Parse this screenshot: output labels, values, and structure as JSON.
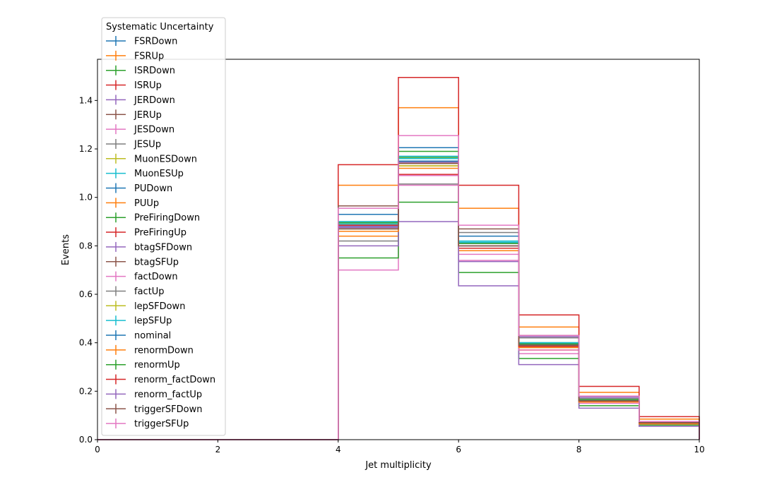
{
  "chart_data": {
    "type": "line",
    "title": "",
    "xlabel": "Jet multiplicity",
    "ylabel": "Events",
    "xlim": [
      0,
      10
    ],
    "ylim": [
      0,
      1.57
    ],
    "grid": false,
    "xticks": [
      "0",
      "2",
      "4",
      "6",
      "8",
      "10"
    ],
    "yticks": [
      "0.0",
      "0.2",
      "0.4",
      "0.6",
      "0.8",
      "1.0",
      "1.2",
      "1.4"
    ],
    "bin_edges": [
      0,
      1,
      2,
      3,
      4,
      5,
      6,
      7,
      8,
      9,
      10
    ],
    "legend": {
      "title": "Systematic Uncertainty",
      "placement": "upper-left"
    },
    "series": [
      {
        "name": "FSRDown",
        "color": "#1f77b4",
        "values": [
          0,
          0,
          0,
          0,
          0.93,
          1.205,
          0.84,
          0.42,
          0.16,
          0.07
        ]
      },
      {
        "name": "FSRUp",
        "color": "#ff7f0e",
        "values": [
          0,
          0,
          0,
          0,
          0.84,
          1.13,
          0.78,
          0.37,
          0.16,
          0.07
        ]
      },
      {
        "name": "ISRDown",
        "color": "#2ca02c",
        "values": [
          0,
          0,
          0,
          0,
          0.9,
          1.19,
          0.81,
          0.4,
          0.16,
          0.07
        ]
      },
      {
        "name": "ISRUp",
        "color": "#d62728",
        "values": [
          0,
          0,
          0,
          0,
          0.88,
          1.15,
          0.8,
          0.39,
          0.16,
          0.07
        ]
      },
      {
        "name": "JERDown",
        "color": "#9467bd",
        "values": [
          0,
          0,
          0,
          0,
          0.875,
          1.14,
          0.79,
          0.385,
          0.16,
          0.07
        ]
      },
      {
        "name": "JERUp",
        "color": "#8c564b",
        "values": [
          0,
          0,
          0,
          0,
          0.885,
          1.145,
          0.8,
          0.39,
          0.16,
          0.07
        ]
      },
      {
        "name": "JESDown",
        "color": "#e377c2",
        "values": [
          0,
          0,
          0,
          0,
          0.7,
          1.05,
          0.74,
          0.355,
          0.15,
          0.065
        ]
      },
      {
        "name": "JESUp",
        "color": "#7f7f7f",
        "values": [
          0,
          0,
          0,
          0,
          0.82,
          1.055,
          0.855,
          0.42,
          0.17,
          0.075
        ]
      },
      {
        "name": "MuonESDown",
        "color": "#bcbd22",
        "values": [
          0,
          0,
          0,
          0,
          0.86,
          1.13,
          0.79,
          0.38,
          0.155,
          0.07
        ]
      },
      {
        "name": "MuonESUp",
        "color": "#17becf",
        "values": [
          0,
          0,
          0,
          0,
          0.89,
          1.17,
          0.82,
          0.4,
          0.16,
          0.07
        ]
      },
      {
        "name": "PUDown",
        "color": "#1f77b4",
        "values": [
          0,
          0,
          0,
          0,
          0.88,
          1.16,
          0.81,
          0.395,
          0.16,
          0.07
        ]
      },
      {
        "name": "PUUp",
        "color": "#ff7f0e",
        "values": [
          0,
          0,
          0,
          0,
          1.05,
          1.37,
          0.955,
          0.465,
          0.195,
          0.085
        ]
      },
      {
        "name": "PreFiringDown",
        "color": "#2ca02c",
        "values": [
          0,
          0,
          0,
          0,
          0.75,
          0.98,
          0.69,
          0.335,
          0.14,
          0.06
        ]
      },
      {
        "name": "PreFiringUp",
        "color": "#d62728",
        "values": [
          0,
          0,
          0,
          0,
          1.135,
          1.495,
          1.05,
          0.515,
          0.22,
          0.095
        ]
      },
      {
        "name": "btagSFDown",
        "color": "#9467bd",
        "values": [
          0,
          0,
          0,
          0,
          0.8,
          0.9,
          0.635,
          0.31,
          0.13,
          0.055
        ]
      },
      {
        "name": "btagSFUp",
        "color": "#8c564b",
        "values": [
          0,
          0,
          0,
          0,
          0.965,
          1.09,
          0.87,
          0.43,
          0.18,
          0.075
        ]
      },
      {
        "name": "factDown",
        "color": "#e377c2",
        "values": [
          0,
          0,
          0,
          0,
          0.86,
          1.09,
          0.765,
          0.37,
          0.155,
          0.065
        ]
      },
      {
        "name": "factUp",
        "color": "#7f7f7f",
        "values": [
          0,
          0,
          0,
          0,
          0.87,
          1.145,
          0.8,
          0.39,
          0.16,
          0.07
        ]
      },
      {
        "name": "lepSFDown",
        "color": "#bcbd22",
        "values": [
          0,
          0,
          0,
          0,
          0.87,
          1.14,
          0.79,
          0.385,
          0.16,
          0.07
        ]
      },
      {
        "name": "lepSFUp",
        "color": "#17becf",
        "values": [
          0,
          0,
          0,
          0,
          0.9,
          1.16,
          0.815,
          0.4,
          0.165,
          0.07
        ]
      },
      {
        "name": "nominal",
        "color": "#1f77b4",
        "values": [
          0,
          0,
          0,
          0,
          0.88,
          1.15,
          0.8,
          0.39,
          0.16,
          0.07
        ]
      },
      {
        "name": "renormDown",
        "color": "#ff7f0e",
        "values": [
          0,
          0,
          0,
          0,
          0.86,
          1.12,
          0.78,
          0.38,
          0.155,
          0.065
        ]
      },
      {
        "name": "renormUp",
        "color": "#2ca02c",
        "values": [
          0,
          0,
          0,
          0,
          0.895,
          1.165,
          0.81,
          0.395,
          0.165,
          0.07
        ]
      },
      {
        "name": "renorm_factDown",
        "color": "#d62728",
        "values": [
          0,
          0,
          0,
          0,
          0.885,
          1.095,
          0.79,
          0.385,
          0.16,
          0.07
        ]
      },
      {
        "name": "renorm_factUp",
        "color": "#9467bd",
        "values": [
          0,
          0,
          0,
          0,
          0.88,
          1.145,
          0.735,
          0.425,
          0.175,
          0.075
        ]
      },
      {
        "name": "triggerSFDown",
        "color": "#8c564b",
        "values": [
          0,
          0,
          0,
          0,
          0.87,
          1.14,
          0.8,
          0.39,
          0.16,
          0.07
        ]
      },
      {
        "name": "triggerSFUp",
        "color": "#e377c2",
        "values": [
          0,
          0,
          0,
          0,
          0.955,
          1.255,
          0.885,
          0.43,
          0.18,
          0.075
        ]
      }
    ]
  }
}
